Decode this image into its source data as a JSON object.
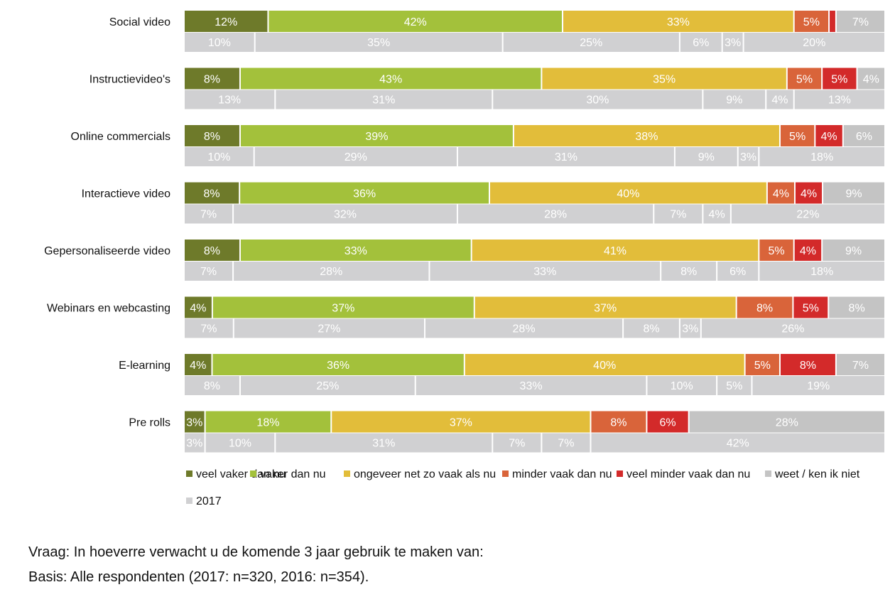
{
  "chart_data": {
    "type": "bar",
    "orientation": "horizontal",
    "stacked": true,
    "normalized": true,
    "categories": [
      "Social video",
      "Instructievideo's",
      "Online commercials",
      "Interactieve video",
      "Gepersonaliseerde video",
      "Webinars en webcasting",
      "E-learning",
      "Pre rolls"
    ],
    "series": [
      {
        "name": "veel vaker dan nu",
        "color": "#6e7a2a",
        "values": [
          12,
          8,
          8,
          8,
          8,
          4,
          4,
          3
        ]
      },
      {
        "name": "vaker dan nu",
        "color": "#a3c13b",
        "values": [
          42,
          43,
          39,
          36,
          33,
          37,
          36,
          18
        ]
      },
      {
        "name": "ongeveer net zo vaak als nu",
        "color": "#e2bd3a",
        "values": [
          33,
          35,
          38,
          40,
          41,
          37,
          40,
          37
        ]
      },
      {
        "name": "minder vaak dan nu",
        "color": "#d9643a",
        "values": [
          5,
          5,
          5,
          4,
          5,
          8,
          5,
          8
        ]
      },
      {
        "name": "veel minder vaak dan nu",
        "color": "#d32a2a",
        "values": [
          1,
          5,
          4,
          4,
          4,
          5,
          8,
          6
        ]
      },
      {
        "name": "weet / ken ik niet",
        "color": "#c4c4c4",
        "values": [
          7,
          4,
          6,
          9,
          9,
          8,
          7,
          28
        ]
      }
    ],
    "label_visible": [
      [
        true,
        true,
        true,
        true,
        false,
        true
      ],
      [
        true,
        true,
        true,
        true,
        true,
        true
      ],
      [
        true,
        true,
        true,
        true,
        true,
        true
      ],
      [
        true,
        true,
        true,
        true,
        true,
        true
      ],
      [
        true,
        true,
        true,
        true,
        true,
        true
      ],
      [
        true,
        true,
        true,
        true,
        true,
        true
      ],
      [
        true,
        true,
        true,
        true,
        true,
        true
      ],
      [
        true,
        true,
        true,
        true,
        true,
        true
      ]
    ],
    "comparison_series": {
      "name": "2017",
      "color": "#d0d0d2",
      "values": [
        [
          10,
          35,
          25,
          6,
          3,
          20
        ],
        [
          13,
          31,
          30,
          9,
          4,
          13
        ],
        [
          10,
          29,
          31,
          9,
          3,
          18
        ],
        [
          7,
          32,
          28,
          7,
          4,
          22
        ],
        [
          7,
          28,
          33,
          8,
          6,
          18
        ],
        [
          7,
          27,
          28,
          8,
          3,
          26
        ],
        [
          8,
          25,
          33,
          10,
          5,
          19
        ],
        [
          3,
          10,
          31,
          7,
          7,
          42
        ]
      ]
    },
    "xlim": [
      0,
      100
    ],
    "value_suffix": "%",
    "legend_position": "bottom"
  },
  "footer": {
    "question": "Vraag: In hoeverre verwacht u de komende 3 jaar gebruik te maken van:",
    "basis": "Basis: Alle respondenten (2017: n=320, 2016: n=354)."
  }
}
